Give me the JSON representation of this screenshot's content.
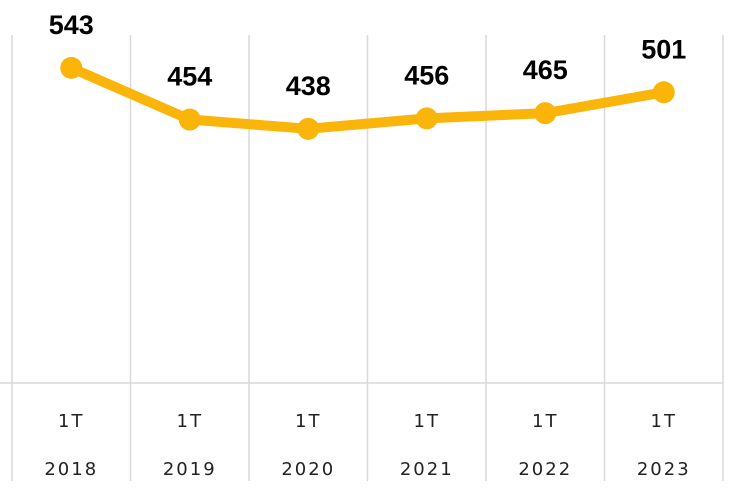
{
  "chart_data": {
    "type": "line",
    "categories": [
      "1T 2018",
      "1T 2019",
      "1T 2020",
      "1T 2021",
      "1T 2022",
      "1T 2023"
    ],
    "series": [
      {
        "color": "#fbb40a",
        "values": [
          543,
          454,
          438,
          456,
          465,
          501
        ]
      }
    ],
    "ylim": [
      0,
      660
    ]
  }
}
